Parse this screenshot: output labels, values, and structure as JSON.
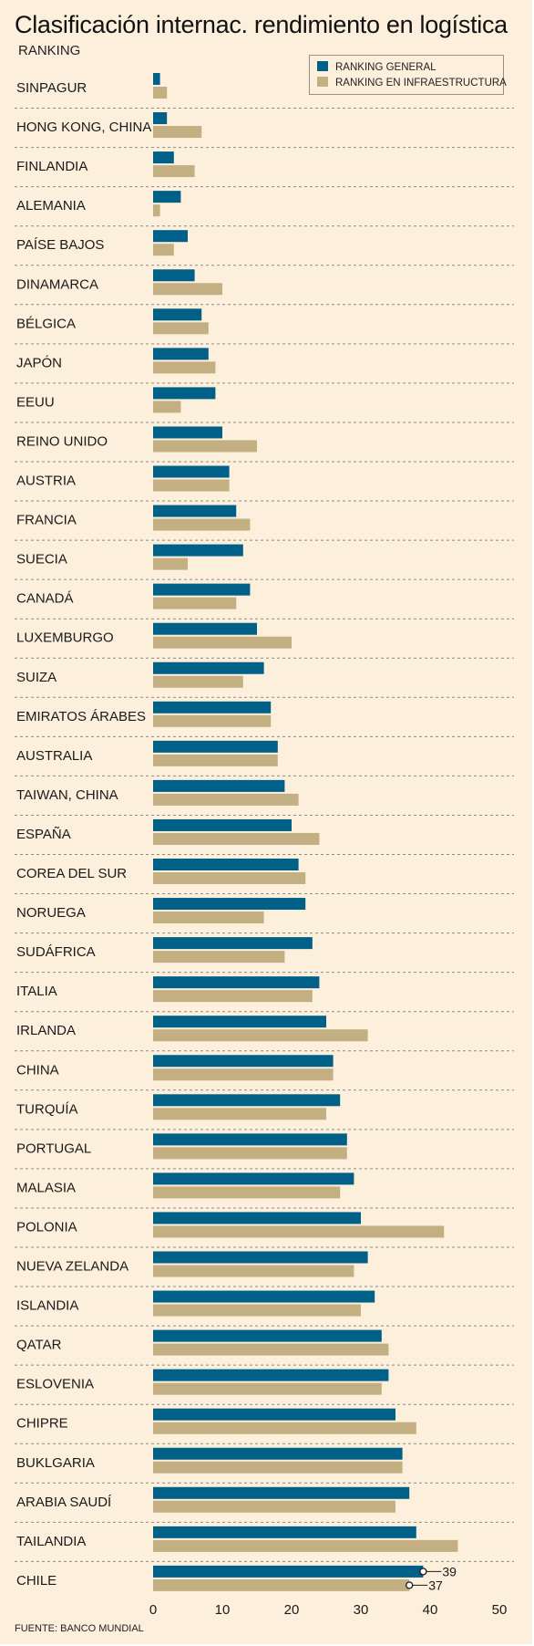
{
  "title": "Clasificación internac. rendimiento en logística",
  "subtitle": "RANKING",
  "source": "FUENTE: BANCO MUNDIAL",
  "colors": {
    "general": "#006088",
    "infra": "#c3af82",
    "background": "#fcefdb"
  },
  "chart_data": {
    "type": "bar",
    "orientation": "horizontal",
    "categories": [
      "SINPAGUR",
      "HONG KONG, CHINA",
      "FINLANDIA",
      "ALEMANIA",
      "PAÍSE BAJOS",
      "DINAMARCA",
      "BÉLGICA",
      "JAPÓN",
      "EEUU",
      "REINO UNIDO",
      "AUSTRIA",
      "FRANCIA",
      "SUECIA",
      "CANADÁ",
      "LUXEMBURGO",
      "SUIZA",
      "EMIRATOS ÁRABES",
      "AUSTRALIA",
      "TAIWAN, CHINA",
      "ESPAÑA",
      "COREA DEL SUR",
      "NORUEGA",
      "SUDÁFRICA",
      "ITALIA",
      "IRLANDA",
      "CHINA",
      "TURQUÍA",
      "PORTUGAL",
      "MALASIA",
      "POLONIA",
      "NUEVA ZELANDA",
      "ISLANDIA",
      "QATAR",
      "ESLOVENIA",
      "CHIPRE",
      "BUKLGARIA",
      "ARABIA SAUDÍ",
      "TAILANDIA",
      "CHILE"
    ],
    "series": [
      {
        "name": "RANKING GENERAL",
        "values": [
          1,
          2,
          3,
          4,
          5,
          6,
          7,
          8,
          9,
          10,
          11,
          12,
          13,
          14,
          15,
          16,
          17,
          18,
          19,
          20,
          21,
          22,
          23,
          24,
          25,
          26,
          27,
          28,
          29,
          30,
          31,
          32,
          33,
          34,
          35,
          36,
          37,
          38,
          39
        ]
      },
      {
        "name": "RANKING EN INFRAESTRUCTURA",
        "values": [
          2,
          7,
          6,
          1,
          3,
          10,
          8,
          9,
          4,
          15,
          11,
          14,
          5,
          12,
          20,
          13,
          17,
          18,
          21,
          24,
          22,
          16,
          19,
          23,
          31,
          26,
          25,
          28,
          27,
          42,
          29,
          30,
          34,
          33,
          38,
          36,
          35,
          44,
          37
        ]
      }
    ],
    "annotations": [
      {
        "category": "CHILE",
        "series": "RANKING GENERAL",
        "label": "39"
      },
      {
        "category": "CHILE",
        "series": "RANKING EN INFRAESTRUCTURA",
        "label": "37"
      }
    ],
    "xlim": [
      0,
      50
    ],
    "xticks": [
      "0",
      "10",
      "20",
      "30",
      "40",
      "50"
    ],
    "grid": false,
    "legend_position": "top-right"
  }
}
